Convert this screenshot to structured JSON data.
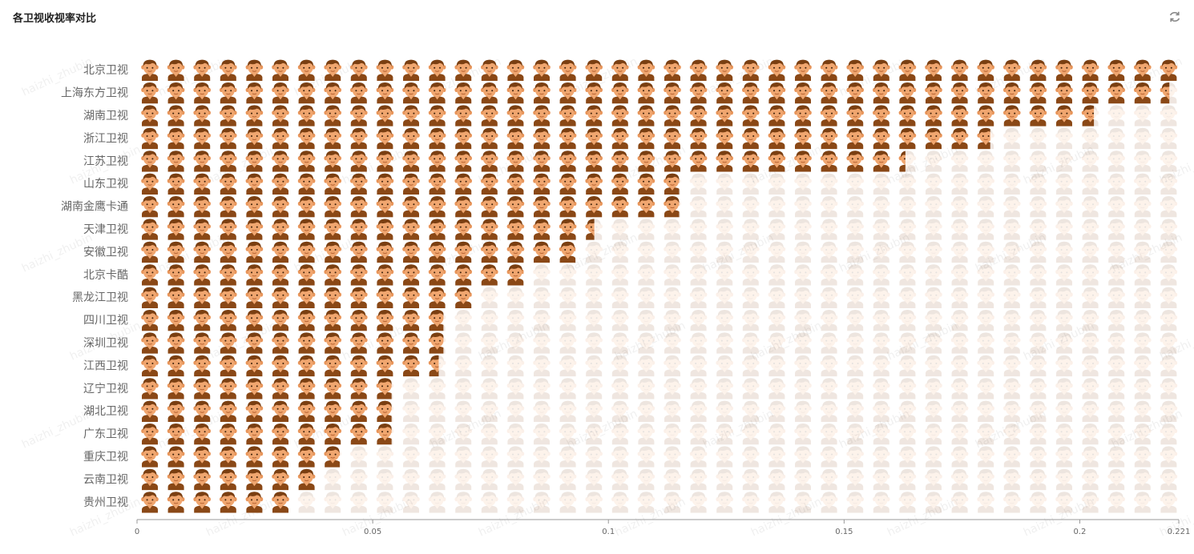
{
  "panel": {
    "title": "各卫视收视率对比"
  },
  "icons": {
    "refresh": "refresh-icon",
    "mark": "boy-face-icon"
  },
  "watermark": "haizhi_zhubin",
  "colors": {
    "hair": "#7a3f12",
    "skin": "#f0a66f",
    "shirt": "#8a4816",
    "value_label": "#2e8b3a",
    "axis": "#999999"
  },
  "chart_data": {
    "type": "pictorial-bar",
    "orientation": "horizontal",
    "title": "各卫视收视率对比",
    "categories": [
      "北京卫视",
      "上海东方卫视",
      "湖南卫视",
      "浙江卫视",
      "江苏卫视",
      "山东卫视",
      "湖南金鹰卡通",
      "天津卫视",
      "安徽卫视",
      "北京卡酷",
      "黑龙江卫视",
      "四川卫视",
      "深圳卫视",
      "江西卫视",
      "辽宁卫视",
      "湖北卫视",
      "广东卫视",
      "重庆卫视",
      "云南卫视",
      "贵州卫视"
    ],
    "values": [
      0.221,
      0.219,
      0.203,
      0.181,
      0.163,
      0.115,
      0.115,
      0.097,
      0.093,
      0.082,
      0.071,
      0.065,
      0.065,
      0.064,
      0.054,
      0.054,
      0.054,
      0.043,
      0.038,
      0.034
    ],
    "value_labels": [
      "",
      "",
      "",
      "",
      "",
      "",
      "",
      "",
      "",
      "",
      "",
      "",
      "",
      "",
      "",
      "",
      "",
      "",
      "",
      ""
    ],
    "xlim": [
      0,
      0.221
    ],
    "xticks": [
      "0",
      "0.05",
      "0.1",
      "0.15",
      "0.2",
      "0.221"
    ],
    "xtick_values": [
      0,
      0.05,
      0.1,
      0.15,
      0.2,
      0.221
    ],
    "background_value": 0.221,
    "legend": "none",
    "grid": false
  }
}
